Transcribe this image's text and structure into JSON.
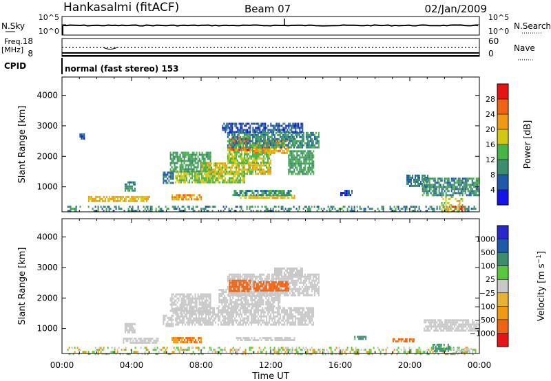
{
  "header": {
    "station": "Hankasalmi (fitACF)",
    "beam": "Beam 07",
    "date": "02/Jan/2009"
  },
  "noise_panel": {
    "left_label": "N.Sky",
    "left_ticks": [
      "10^5",
      "10^0"
    ],
    "right_label": "N.Search",
    "right_ticks": [
      "10^5",
      "10^0"
    ]
  },
  "freq_panel": {
    "left_label_1": "Freq.",
    "left_label_2": "[MHz]",
    "left_ticks": [
      "18",
      "8"
    ],
    "right_label": "Nave",
    "right_ticks": [
      "60",
      "0"
    ],
    "cpid_label": "CPID",
    "mode_text": "normal (fast stereo) 153"
  },
  "colors": {
    "power": [
      "#1414e6",
      "#1e5aa8",
      "#3c8c6e",
      "#46b446",
      "#d2c814",
      "#f09a14",
      "#ee6414",
      "#e61414"
    ],
    "velocity": [
      "#e61414",
      "#ee6414",
      "#f09a14",
      "#e6b432",
      "#c8c8c8",
      "#5ac83c",
      "#3c8c6e",
      "#1e5aa8",
      "#2828c8"
    ],
    "ground_scatter": "#c8c8c8"
  },
  "chart_data": [
    {
      "type": "heatmap",
      "title": "Power",
      "xlabel": "Time UT",
      "ylabel": "Slant Range [km]",
      "x_ticks": [
        "00:00",
        "04:00",
        "08:00",
        "12:00",
        "16:00",
        "20:00",
        "00:00"
      ],
      "y_ticks": [
        1000,
        2000,
        3000,
        4000
      ],
      "xlim": [
        0,
        24
      ],
      "ylim": [
        180,
        4600
      ],
      "colorbar": {
        "label": "Power [dB]",
        "ticks": [
          "4",
          "8",
          "12",
          "16",
          "20",
          "24",
          "28"
        ],
        "range": [
          0,
          32
        ]
      },
      "regions": [
        {
          "t": [
            0.3,
            23.8
          ],
          "r": [
            180,
            380
          ],
          "value": 10
        },
        {
          "t": [
            6.3,
            8.0
          ],
          "r": [
            600,
            760
          ],
          "value": 22
        },
        {
          "t": [
            1.5,
            5.0
          ],
          "r": [
            560,
            700
          ],
          "value": 20
        },
        {
          "t": [
            10.0,
            13.4
          ],
          "r": [
            640,
            740
          ],
          "value": 20
        },
        {
          "t": [
            9.8,
            13.2
          ],
          "r": [
            720,
            900
          ],
          "value": 10
        },
        {
          "t": [
            3.6,
            4.2
          ],
          "r": [
            880,
            1180
          ],
          "value": 10
        },
        {
          "t": [
            5.8,
            6.4
          ],
          "r": [
            1100,
            1500
          ],
          "value": 8
        },
        {
          "t": [
            6.5,
            10.5
          ],
          "r": [
            1150,
            1520
          ],
          "value": 16
        },
        {
          "t": [
            6.2,
            8.5
          ],
          "r": [
            1500,
            2150
          ],
          "value": 12
        },
        {
          "t": [
            8.0,
            12.0
          ],
          "r": [
            1400,
            1800
          ],
          "value": 18
        },
        {
          "t": [
            9.5,
            12.0
          ],
          "r": [
            1800,
            2300
          ],
          "value": 16
        },
        {
          "t": [
            9.6,
            10.8
          ],
          "r": [
            2200,
            2650
          ],
          "value": 26
        },
        {
          "t": [
            11.0,
            13.0
          ],
          "r": [
            2100,
            2550
          ],
          "value": 22
        },
        {
          "t": [
            9.5,
            14.8
          ],
          "r": [
            2300,
            2800
          ],
          "value": 10
        },
        {
          "t": [
            13.0,
            14.5
          ],
          "r": [
            1400,
            2200
          ],
          "value": 12
        },
        {
          "t": [
            9.2,
            13.8
          ],
          "r": [
            2800,
            3100
          ],
          "value": 6
        },
        {
          "t": [
            1.0,
            1.3
          ],
          "r": [
            2600,
            2750
          ],
          "value": 6
        },
        {
          "t": [
            16.0,
            16.7
          ],
          "r": [
            760,
            900
          ],
          "value": 6
        },
        {
          "t": [
            19.8,
            21.0
          ],
          "r": [
            1050,
            1400
          ],
          "value": 8
        },
        {
          "t": [
            20.7,
            24.0
          ],
          "r": [
            750,
            1300
          ],
          "value": 10
        },
        {
          "t": [
            21.8,
            23.0
          ],
          "r": [
            180,
            700
          ],
          "value": 18
        },
        {
          "t": [
            22.2,
            23.2
          ],
          "r": [
            180,
            380
          ],
          "value": 27
        }
      ]
    },
    {
      "type": "heatmap",
      "title": "Velocity",
      "xlabel": "Time UT",
      "ylabel": "Slant Range [km]",
      "x_ticks": [
        "00:00",
        "04:00",
        "08:00",
        "12:00",
        "16:00",
        "20:00",
        "00:00"
      ],
      "y_ticks": [
        1000,
        2000,
        3000,
        4000
      ],
      "xlim": [
        0,
        24
      ],
      "ylim": [
        180,
        4600
      ],
      "colorbar": {
        "label": "Velocity [m s^-1]",
        "ticks": [
          "1000",
          "500",
          "100",
          "25",
          "−25",
          "−100",
          "−500",
          "−1000"
        ]
      },
      "regions": [
        {
          "t": [
            0.3,
            23.8
          ],
          "r": [
            180,
            400
          ],
          "value": "ground",
          "mix": "green/orange"
        },
        {
          "t": [
            3.5,
            5.5
          ],
          "r": [
            560,
            700
          ],
          "value": "ground"
        },
        {
          "t": [
            6.3,
            8.0
          ],
          "r": [
            580,
            720
          ],
          "value": -100
        },
        {
          "t": [
            10.0,
            13.4
          ],
          "r": [
            600,
            720
          ],
          "value": "ground"
        },
        {
          "t": [
            3.6,
            4.2
          ],
          "r": [
            880,
            1180
          ],
          "value": "ground"
        },
        {
          "t": [
            5.8,
            6.4
          ],
          "r": [
            1100,
            1450
          ],
          "value": "ground"
        },
        {
          "t": [
            6.5,
            14.5
          ],
          "r": [
            1150,
            1700
          ],
          "value": "ground"
        },
        {
          "t": [
            6.2,
            8.5
          ],
          "r": [
            1500,
            2150
          ],
          "value": "ground"
        },
        {
          "t": [
            9.0,
            12.5
          ],
          "r": [
            1700,
            2300
          ],
          "value": "ground"
        },
        {
          "t": [
            9.5,
            14.8
          ],
          "r": [
            2100,
            2800
          ],
          "value": "ground"
        },
        {
          "t": [
            9.6,
            10.8
          ],
          "r": [
            2250,
            2600
          ],
          "value": -300
        },
        {
          "t": [
            11.0,
            13.0
          ],
          "r": [
            2250,
            2550
          ],
          "value": -300
        },
        {
          "t": [
            12.2,
            13.8
          ],
          "r": [
            2750,
            3000
          ],
          "value": "ground"
        },
        {
          "t": [
            16.8,
            17.5
          ],
          "r": [
            640,
            760
          ],
          "value": 150
        },
        {
          "t": [
            19.0,
            20.2
          ],
          "r": [
            560,
            680
          ],
          "value": -150
        },
        {
          "t": [
            20.8,
            24.0
          ],
          "r": [
            950,
            1300
          ],
          "value": "ground"
        },
        {
          "t": [
            21.3,
            22.3
          ],
          "r": [
            250,
            500
          ],
          "value": 150
        },
        {
          "t": [
            22.3,
            23.6
          ],
          "r": [
            180,
            360
          ],
          "value": "ground"
        }
      ]
    }
  ]
}
